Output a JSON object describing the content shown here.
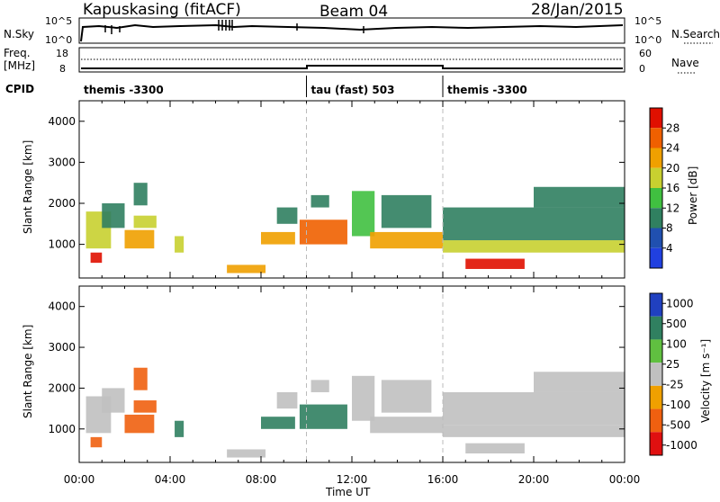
{
  "header": {
    "station": "Kapuskasing (fitACF)",
    "beam": "Beam 04",
    "date": "28/Jan/2015"
  },
  "strips": {
    "nsky_label": "N.Sky",
    "nsky_ticks": [
      "10^5",
      "10^0"
    ],
    "nsearch_label": "N.Search",
    "nsearch_ticks": [
      "10^5",
      "10^0"
    ],
    "freq_label_1": "Freq.",
    "freq_label_2": "[MHz]",
    "freq_ticks": [
      "18",
      "8"
    ],
    "nave_label": "Nave",
    "nave_ticks": [
      "60",
      "0"
    ],
    "cpid_label": "CPID",
    "cpid_segments": [
      {
        "label": "themis -3300",
        "start_hour": 0,
        "end_hour": 10
      },
      {
        "label": "tau (fast) 503",
        "start_hour": 10,
        "end_hour": 16
      },
      {
        "label": "themis -3300",
        "start_hour": 16,
        "end_hour": 24
      }
    ]
  },
  "colors": {
    "power": [
      "#2040e0",
      "#2050b0",
      "#308060",
      "#40c040",
      "#c8d030",
      "#f0a000",
      "#f06000",
      "#e01000"
    ],
    "velocity": [
      "#2040c0",
      "#308060",
      "#60c040",
      "#c0c0c0",
      "#f0a000",
      "#f06010",
      "#e01010"
    ],
    "ground_scatter": "#c0c0c0"
  },
  "chart_data": [
    {
      "type": "heatmap",
      "name": "power",
      "xlabel": "Time UT",
      "ylabel": "Slant Range [km]",
      "xlim": [
        0,
        24
      ],
      "ylim": [
        180,
        4500
      ],
      "x_ticks": [
        "00:00",
        "04:00",
        "08:00",
        "12:00",
        "16:00",
        "20:00",
        "00:00"
      ],
      "y_ticks": [
        1000,
        2000,
        3000,
        4000
      ],
      "colorbar": {
        "label": "Power [dB]",
        "ticks": [
          "4",
          "8",
          "12",
          "16",
          "20",
          "24",
          "28"
        ],
        "range": [
          0,
          30
        ]
      },
      "bands": [
        {
          "t0": 0.3,
          "t1": 1.4,
          "r0": 900,
          "r1": 1800,
          "value": 18
        },
        {
          "t0": 0.5,
          "t1": 1.0,
          "r0": 550,
          "r1": 800,
          "value": 28
        },
        {
          "t0": 1.0,
          "t1": 2.0,
          "r0": 1400,
          "r1": 2000,
          "value": 10
        },
        {
          "t0": 2.0,
          "t1": 3.3,
          "r0": 900,
          "r1": 1350,
          "value": 22
        },
        {
          "t0": 2.4,
          "t1": 3.0,
          "r0": 1950,
          "r1": 2500,
          "value": 8
        },
        {
          "t0": 2.4,
          "t1": 3.4,
          "r0": 1400,
          "r1": 1700,
          "value": 16
        },
        {
          "t0": 4.2,
          "t1": 4.6,
          "r0": 800,
          "r1": 1200,
          "value": 18
        },
        {
          "t0": 6.5,
          "t1": 8.2,
          "r0": 300,
          "r1": 500,
          "value": 20
        },
        {
          "t0": 8.0,
          "t1": 9.5,
          "r0": 1000,
          "r1": 1300,
          "value": 20
        },
        {
          "t0": 8.7,
          "t1": 9.6,
          "r0": 1500,
          "r1": 1900,
          "value": 10
        },
        {
          "t0": 9.7,
          "t1": 11.8,
          "r0": 1000,
          "r1": 1600,
          "value": 24
        },
        {
          "t0": 10.2,
          "t1": 11.0,
          "r0": 1900,
          "r1": 2200,
          "value": 8
        },
        {
          "t0": 12.0,
          "t1": 13.0,
          "r0": 1200,
          "r1": 2300,
          "value": 14
        },
        {
          "t0": 12.8,
          "t1": 16.0,
          "r0": 900,
          "r1": 1300,
          "value": 20
        },
        {
          "t0": 13.3,
          "t1": 15.5,
          "r0": 1400,
          "r1": 2200,
          "value": 8
        },
        {
          "t0": 16.0,
          "t1": 24.0,
          "r0": 800,
          "r1": 1100,
          "value": 18
        },
        {
          "t0": 16.0,
          "t1": 24.0,
          "r0": 1100,
          "r1": 1900,
          "value": 10
        },
        {
          "t0": 17.0,
          "t1": 19.6,
          "r0": 400,
          "r1": 650,
          "value": 28
        },
        {
          "t0": 20.0,
          "t1": 24.0,
          "r0": 1900,
          "r1": 2400,
          "value": 8
        }
      ]
    },
    {
      "type": "heatmap",
      "name": "velocity",
      "xlabel": "Time UT",
      "ylabel": "Slant Range [km]",
      "xlim": [
        0,
        24
      ],
      "ylim": [
        180,
        4500
      ],
      "x_ticks": [
        "00:00",
        "04:00",
        "08:00",
        "12:00",
        "16:00",
        "20:00",
        "00:00"
      ],
      "y_ticks": [
        1000,
        2000,
        3000,
        4000
      ],
      "colorbar": {
        "label": "Velocity [m s⁻¹]",
        "ticks": [
          "1000",
          "500",
          "100",
          "25",
          "-25",
          "-100",
          "-500",
          "-1000"
        ],
        "range": [
          -1000,
          1000
        ]
      },
      "bands": [
        {
          "t0": 0.3,
          "t1": 1.4,
          "r0": 900,
          "r1": 1800,
          "value": 0
        },
        {
          "t0": 0.5,
          "t1": 1.0,
          "r0": 550,
          "r1": 800,
          "value": -400
        },
        {
          "t0": 1.0,
          "t1": 2.0,
          "r0": 1400,
          "r1": 2000,
          "value": 0
        },
        {
          "t0": 2.0,
          "t1": 3.3,
          "r0": 900,
          "r1": 1350,
          "value": -300
        },
        {
          "t0": 2.4,
          "t1": 3.0,
          "r0": 1950,
          "r1": 2500,
          "value": -200
        },
        {
          "t0": 2.4,
          "t1": 3.4,
          "r0": 1400,
          "r1": 1700,
          "value": -150
        },
        {
          "t0": 4.2,
          "t1": 4.6,
          "r0": 800,
          "r1": 1200,
          "value": 150
        },
        {
          "t0": 6.5,
          "t1": 8.2,
          "r0": 300,
          "r1": 500,
          "value": 0
        },
        {
          "t0": 8.0,
          "t1": 9.5,
          "r0": 1000,
          "r1": 1300,
          "value": 300
        },
        {
          "t0": 8.7,
          "t1": 9.6,
          "r0": 1500,
          "r1": 1900,
          "value": 0
        },
        {
          "t0": 9.7,
          "t1": 11.8,
          "r0": 1000,
          "r1": 1600,
          "value": 150
        },
        {
          "t0": 10.2,
          "t1": 11.0,
          "r0": 1900,
          "r1": 2200,
          "value": 0
        },
        {
          "t0": 12.0,
          "t1": 13.0,
          "r0": 1200,
          "r1": 2300,
          "value": 0
        },
        {
          "t0": 12.8,
          "t1": 16.0,
          "r0": 900,
          "r1": 1300,
          "value": 0
        },
        {
          "t0": 13.3,
          "t1": 15.5,
          "r0": 1400,
          "r1": 2200,
          "value": 0
        },
        {
          "t0": 16.0,
          "t1": 24.0,
          "r0": 800,
          "r1": 1100,
          "value": 0
        },
        {
          "t0": 16.0,
          "t1": 24.0,
          "r0": 1100,
          "r1": 1900,
          "value": 0
        },
        {
          "t0": 17.0,
          "t1": 19.6,
          "r0": 400,
          "r1": 650,
          "value": 0
        },
        {
          "t0": 20.0,
          "t1": 24.0,
          "r0": 1900,
          "r1": 2400,
          "value": 0
        }
      ]
    }
  ]
}
